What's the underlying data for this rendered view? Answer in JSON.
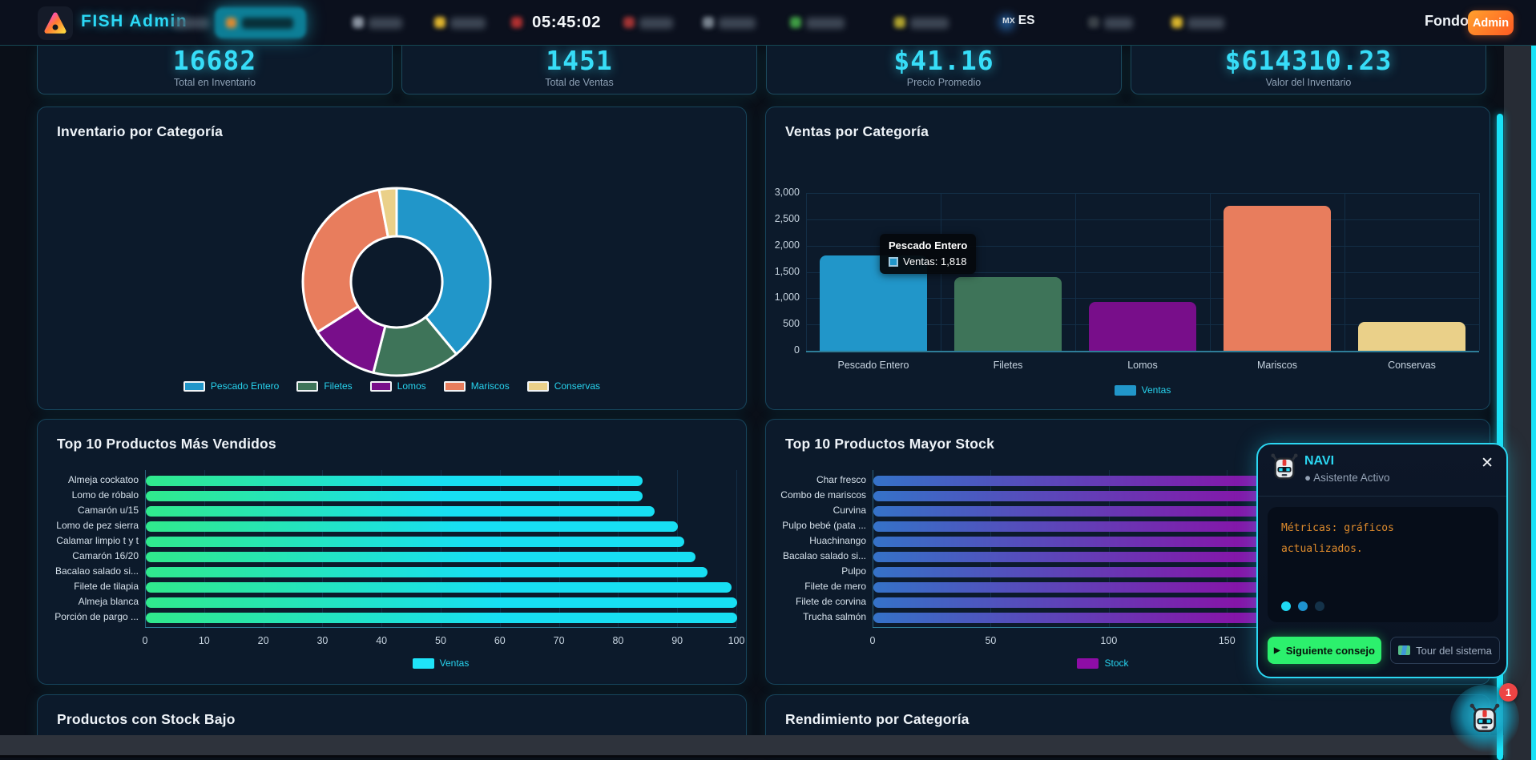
{
  "navbar": {
    "brand": "FISH Admin",
    "clock": "05:45:02",
    "language": {
      "country": "MX",
      "code": "ES"
    },
    "fondo_label": "Fondo",
    "admin_badge": "Admin"
  },
  "stats": [
    {
      "value": "16682",
      "label": "Total en Inventario"
    },
    {
      "value": "1451",
      "label": "Total de Ventas"
    },
    {
      "value": "$41.16",
      "label": "Precio Promedio"
    },
    {
      "value": "$614310.23",
      "label": "Valor del Inventario"
    }
  ],
  "chart_data": [
    {
      "type": "pie",
      "title": "Inventario por Categoría",
      "labels": [
        "Pescado Entero",
        "Filetes",
        "Lomos",
        "Mariscos",
        "Conservas"
      ],
      "values_pct": [
        39,
        15,
        12,
        31,
        3
      ],
      "colors": [
        "#2196c9",
        "#3e7459",
        "#780e8a",
        "#e87d5d",
        "#ead089"
      ],
      "donut": true,
      "legend_position": "bottom"
    },
    {
      "type": "bar",
      "title": "Ventas por Categoría",
      "categories": [
        "Pescado Entero",
        "Filetes",
        "Lomos",
        "Mariscos",
        "Conservas"
      ],
      "values": [
        1818,
        1400,
        930,
        2760,
        545
      ],
      "colors": [
        "#2196c9",
        "#3e7459",
        "#780e8a",
        "#e87d5d",
        "#ead089"
      ],
      "ylim": [
        0,
        3000
      ],
      "yticks": [
        0,
        500,
        1000,
        1500,
        2000,
        2500,
        3000
      ],
      "series_name": "Ventas",
      "legend_color": "#2196c9",
      "grid": true,
      "tooltip": {
        "title": "Pescado Entero",
        "text": "Ventas: 1,818"
      }
    },
    {
      "type": "bar-horizontal",
      "title": "Top 10 Productos Más Vendidos",
      "categories": [
        "Almeja cockatoo",
        "Lomo de róbalo",
        "Camarón u/15",
        "Lomo de pez sierra",
        "Calamar limpio t y t",
        "Camarón 16/20",
        "Bacalao salado si...",
        "Filete de tilapia",
        "Almeja blanca",
        "Porción de pargo ..."
      ],
      "values": [
        84,
        84,
        86,
        90,
        91,
        93,
        95,
        99,
        100,
        100
      ],
      "xlim": [
        0,
        100
      ],
      "xticks": [
        0,
        10,
        20,
        30,
        40,
        50,
        60,
        70,
        80,
        90,
        100
      ],
      "series_name": "Ventas",
      "legend_color": "#1fe3f8",
      "grid": true
    },
    {
      "type": "bar-horizontal",
      "title": "Top 10 Productos Mayor Stock",
      "categories": [
        "Char fresco",
        "Combo de mariscos",
        "Curvina",
        "Pulpo bebé (pata ...",
        "Huachinango",
        "Bacalao salado si...",
        "Pulpo",
        "Filete de mero",
        "Filete de corvina",
        "Trucha salmón"
      ],
      "values": [
        174,
        173,
        172,
        171,
        170,
        169,
        168,
        167,
        166,
        165
      ],
      "xlim": [
        0,
        195
      ],
      "xticks": [
        0,
        50,
        100,
        150
      ],
      "series_name": "Stock",
      "legend_color": "#8e0da6",
      "grid": true
    }
  ],
  "sections": {
    "low_stock_title": "Productos con Stock Bajo",
    "performance_title": "Rendimiento por Categoría"
  },
  "navi": {
    "name": "NAVI",
    "status_dot": "●",
    "status": "Asistente Activo",
    "close_icon": "✕",
    "message": "Métricas: gráficos actualizados.",
    "next_button": "Siguiente consejo",
    "play_icon": "▶",
    "tour_button": "Tour del sistema",
    "badge_count": "1"
  }
}
